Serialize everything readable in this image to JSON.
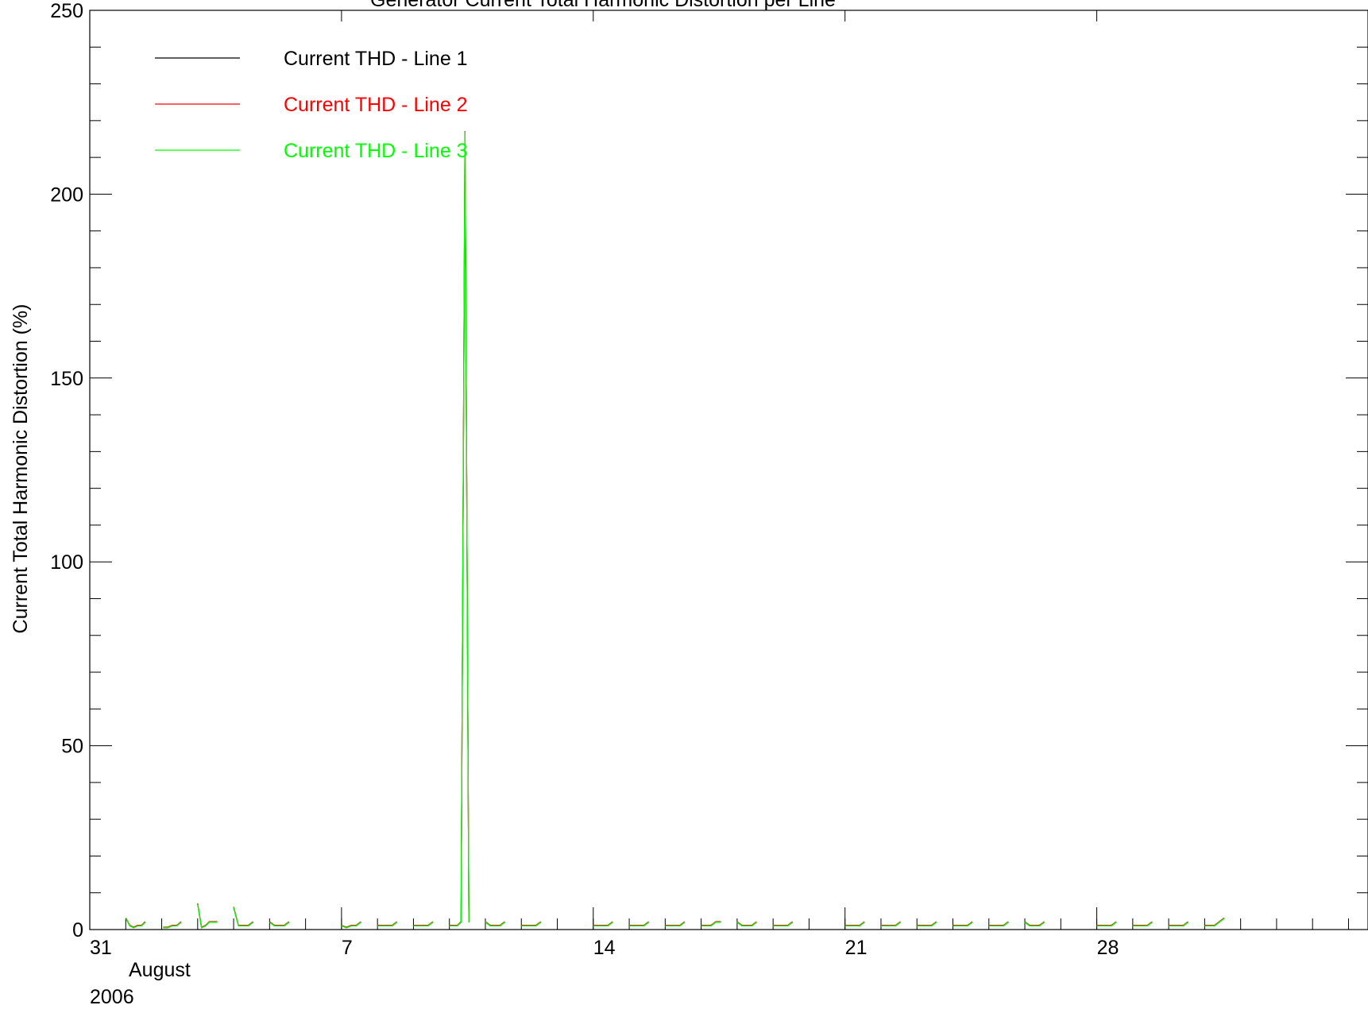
{
  "chart_data": {
    "type": "line",
    "title": "Generator Current  Total Harmonic Distortion per Line",
    "ylabel": "Current Total Harmonic Distortion (%)",
    "xlabel": "",
    "x_axis_note": {
      "month": "August",
      "year": "2006"
    },
    "xlim": [
      "2006-07-31T00:00",
      "2006-09-04T13:00"
    ],
    "ylim": [
      0,
      250
    ],
    "x_ticks": [
      {
        "date": "2006-07-31",
        "label": "31"
      },
      {
        "date": "2006-08-07",
        "label": "7"
      },
      {
        "date": "2006-08-14",
        "label": "14"
      },
      {
        "date": "2006-08-21",
        "label": "21"
      },
      {
        "date": "2006-08-28",
        "label": "28"
      }
    ],
    "y_ticks": [
      0,
      50,
      100,
      150,
      200,
      250
    ],
    "y_minor_step": 10,
    "grid": false,
    "legend_position": "top-left",
    "series": [
      {
        "name": "Current THD - Line 1",
        "color": "#000000"
      },
      {
        "name": "Current THD - Line 2",
        "color": "#ff0000"
      },
      {
        "name": "Current THD - Line 3",
        "color": "#00ff00"
      }
    ],
    "daily_segments": [
      {
        "start": "2006-08-01T00:10",
        "end": "2006-08-01T13:00",
        "values": [
          3,
          1,
          0.5,
          1,
          1,
          2
        ]
      },
      {
        "start": "2006-08-02T01:00",
        "end": "2006-08-02T13:00",
        "values": [
          0.5,
          0.5,
          1,
          1,
          2
        ]
      },
      {
        "start": "2006-08-03T00:00",
        "end": "2006-08-03T13:00",
        "values": [
          7,
          0.5,
          1,
          2,
          2,
          2
        ]
      },
      {
        "start": "2006-08-04T00:00",
        "end": "2006-08-04T13:00",
        "values": [
          6,
          1,
          1,
          1,
          2
        ]
      },
      {
        "start": "2006-08-05T00:00",
        "end": "2006-08-05T13:00",
        "values": [
          2,
          1,
          1,
          1,
          2
        ]
      },
      {
        "start": "2006-08-07T00:00",
        "end": "2006-08-07T13:00",
        "values": [
          1,
          0.5,
          1,
          1,
          2
        ]
      },
      {
        "start": "2006-08-08T00:00",
        "end": "2006-08-08T13:00",
        "values": [
          1,
          1,
          1,
          1,
          2
        ]
      },
      {
        "start": "2006-08-09T00:00",
        "end": "2006-08-09T13:00",
        "values": [
          1,
          1,
          1,
          1,
          2
        ]
      },
      {
        "start": "2006-08-10T00:00",
        "end": "2006-08-10T13:00",
        "values": [
          1,
          1,
          1,
          2,
          217,
          2
        ]
      },
      {
        "start": "2006-08-11T00:00",
        "end": "2006-08-11T13:00",
        "values": [
          2,
          1,
          1,
          1,
          2
        ]
      },
      {
        "start": "2006-08-12T00:00",
        "end": "2006-08-12T13:00",
        "values": [
          1,
          1,
          1,
          1,
          2
        ]
      },
      {
        "start": "2006-08-14T00:00",
        "end": "2006-08-14T13:00",
        "values": [
          1,
          1,
          1,
          1,
          2
        ]
      },
      {
        "start": "2006-08-15T00:00",
        "end": "2006-08-15T13:00",
        "values": [
          1,
          1,
          1,
          1,
          2
        ]
      },
      {
        "start": "2006-08-16T00:00",
        "end": "2006-08-16T13:00",
        "values": [
          1,
          1,
          1,
          1,
          2
        ]
      },
      {
        "start": "2006-08-17T00:00",
        "end": "2006-08-17T13:00",
        "values": [
          1,
          1,
          1,
          2,
          2
        ]
      },
      {
        "start": "2006-08-18T00:00",
        "end": "2006-08-18T13:00",
        "values": [
          2,
          1,
          1,
          1,
          2
        ]
      },
      {
        "start": "2006-08-19T00:00",
        "end": "2006-08-19T13:00",
        "values": [
          1,
          1,
          1,
          1,
          2
        ]
      },
      {
        "start": "2006-08-21T00:00",
        "end": "2006-08-21T13:00",
        "values": [
          1,
          1,
          1,
          1,
          2
        ]
      },
      {
        "start": "2006-08-22T00:00",
        "end": "2006-08-22T13:00",
        "values": [
          1,
          1,
          1,
          1,
          2
        ]
      },
      {
        "start": "2006-08-23T00:00",
        "end": "2006-08-23T13:00",
        "values": [
          1,
          1,
          1,
          1,
          2
        ]
      },
      {
        "start": "2006-08-24T00:00",
        "end": "2006-08-24T13:00",
        "values": [
          1,
          1,
          1,
          1,
          2
        ]
      },
      {
        "start": "2006-08-25T00:00",
        "end": "2006-08-25T13:00",
        "values": [
          1,
          1,
          1,
          1,
          2
        ]
      },
      {
        "start": "2006-08-26T00:00",
        "end": "2006-08-26T13:00",
        "values": [
          2,
          1,
          1,
          1,
          2
        ]
      },
      {
        "start": "2006-08-28T00:00",
        "end": "2006-08-28T13:00",
        "values": [
          1,
          1,
          1,
          1,
          2
        ]
      },
      {
        "start": "2006-08-29T00:00",
        "end": "2006-08-29T13:00",
        "values": [
          1,
          1,
          1,
          1,
          2
        ]
      },
      {
        "start": "2006-08-30T00:00",
        "end": "2006-08-30T13:00",
        "values": [
          1,
          1,
          1,
          1,
          2
        ]
      },
      {
        "start": "2006-08-31T00:00",
        "end": "2006-08-31T13:00",
        "values": [
          1,
          1,
          1,
          2,
          3
        ]
      }
    ]
  }
}
